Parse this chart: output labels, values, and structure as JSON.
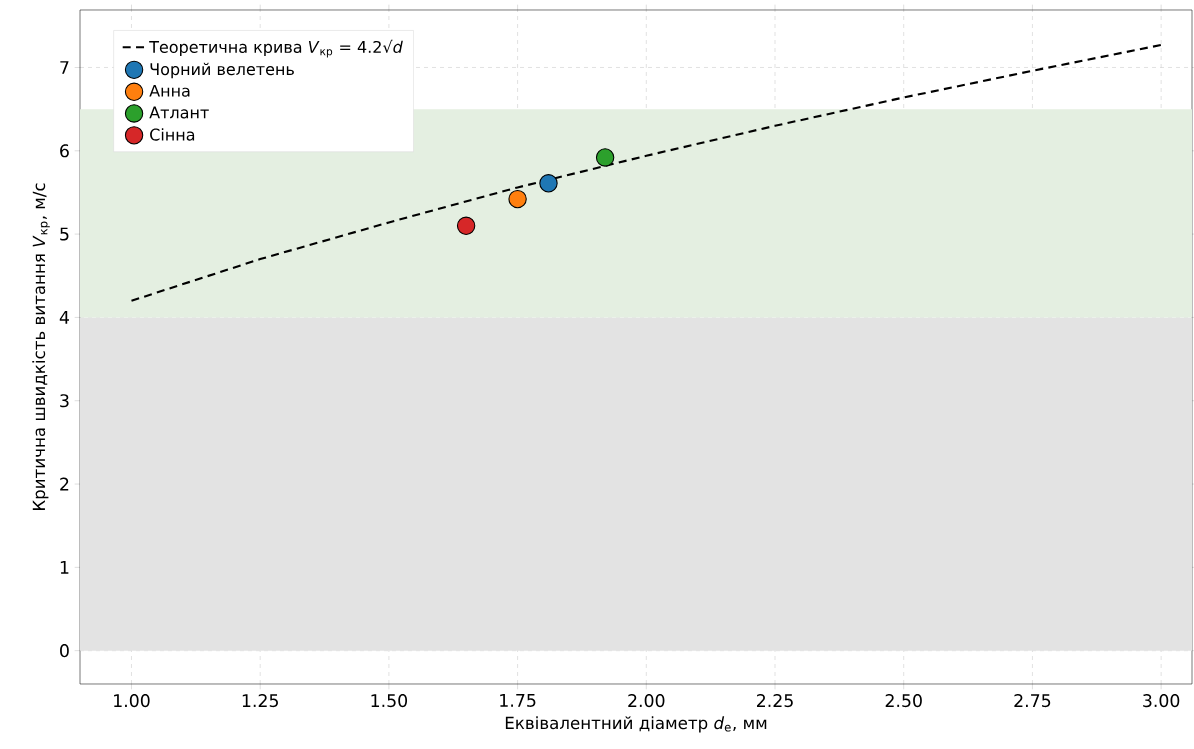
{
  "chart_data": {
    "type": "scatter",
    "xlabel": "Еквівалентний діаметр *d*$_{e}$, мм",
    "ylabel": "Критична швидкість витання *V*$_{кр}$, м/с",
    "xlim": [
      0.9,
      3.06
    ],
    "ylim": [
      -0.4,
      7.69
    ],
    "xticks": [
      {
        "value": 1.0,
        "label": "1.00"
      },
      {
        "value": 1.25,
        "label": "1.25"
      },
      {
        "value": 1.5,
        "label": "1.50"
      },
      {
        "value": 1.75,
        "label": "1.75"
      },
      {
        "value": 2.0,
        "label": "2.00"
      },
      {
        "value": 2.25,
        "label": "2.25"
      },
      {
        "value": 2.5,
        "label": "2.50"
      },
      {
        "value": 2.75,
        "label": "2.75"
      },
      {
        "value": 3.0,
        "label": "3.00"
      }
    ],
    "yticks": [
      0,
      1,
      2,
      3,
      4,
      5,
      6,
      7
    ],
    "grid": true,
    "legend": "top left",
    "marker": "circle",
    "bands": [
      {
        "axis": "y",
        "from": 0,
        "to": 4,
        "color": "#e3e3e3"
      },
      {
        "axis": "y",
        "from": 4,
        "to": 6.5,
        "color": "#e4efe1"
      }
    ],
    "series": [
      {
        "name": "Теоретична крива *V*$_{кр}$ = 4.2√*d*",
        "type": "line",
        "line_style": "dashed",
        "marker": "none",
        "color": "#000000",
        "x": [
          1.0,
          1.25,
          1.5,
          1.75,
          2.0,
          2.25,
          2.5,
          2.75,
          3.0
        ],
        "values": [
          4.2,
          4.7,
          5.14,
          5.56,
          5.94,
          6.3,
          6.64,
          6.96,
          7.27
        ]
      },
      {
        "name": "Чорний велетень",
        "color": "#1f77b4",
        "x": [
          1.81
        ],
        "values": [
          5.61
        ]
      },
      {
        "name": "Анна",
        "color": "#ff7f0e",
        "x": [
          1.75
        ],
        "values": [
          5.42
        ]
      },
      {
        "name": "Атлант",
        "color": "#2ca02c",
        "x": [
          1.92
        ],
        "values": [
          5.92
        ]
      },
      {
        "name": "Сінна",
        "color": "#d62728",
        "x": [
          1.65
        ],
        "values": [
          5.1
        ]
      }
    ]
  }
}
